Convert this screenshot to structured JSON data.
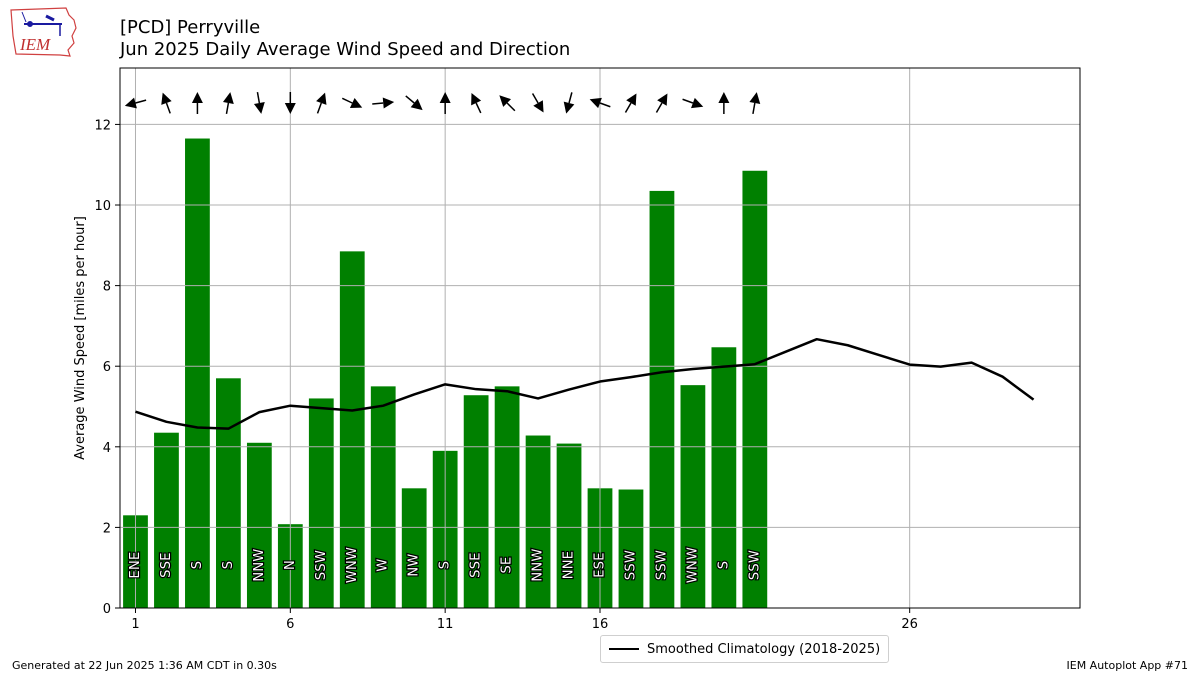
{
  "header": {
    "title_line1": "[PCD] Perryville",
    "title_line2": "Jun 2025 Daily Average Wind Speed and Direction",
    "logo_text": "IEM"
  },
  "footer": {
    "generated": "Generated at 22 Jun 2025 1:36 AM CDT in 0.30s",
    "app": "IEM Autoplot App #71"
  },
  "legend": {
    "climatology_label": "Smoothed Climatology (2018-2025)"
  },
  "colors": {
    "bar": "#008000",
    "climatology": "#000000",
    "grid": "#b0b0b0"
  },
  "chart_data": {
    "type": "bar",
    "ylabel": "Average Wind Speed [miles per hour]",
    "xlabel": "",
    "ylim": [
      0,
      13.4
    ],
    "xlim": [
      0.5,
      31.5
    ],
    "xticks": [
      1,
      6,
      11,
      16,
      26
    ],
    "yticks": [
      0,
      2,
      4,
      6,
      8,
      10,
      12
    ],
    "grid": true,
    "legend_position": "bottom-center",
    "series": [
      {
        "kind": "bar",
        "days": [
          1,
          2,
          3,
          4,
          5,
          6,
          7,
          8,
          9,
          10,
          11,
          12,
          13,
          14,
          15,
          16,
          17,
          18,
          19,
          20,
          21
        ],
        "values": [
          2.3,
          4.35,
          11.65,
          5.7,
          4.1,
          2.08,
          5.2,
          8.85,
          5.5,
          2.97,
          3.9,
          5.28,
          5.5,
          4.28,
          4.08,
          2.97,
          2.94,
          10.35,
          5.53,
          6.47,
          10.85
        ],
        "directions": [
          "ENE",
          "SSE",
          "S",
          "S",
          "NNW",
          "N",
          "SSW",
          "WNW",
          "W",
          "NW",
          "S",
          "SSE",
          "SE",
          "NNW",
          "NNE",
          "ESE",
          "SSW",
          "SSW",
          "WNW",
          "S",
          "SSW"
        ],
        "arrow_bearings_deg": [
          75,
          160,
          180,
          190,
          350,
          0,
          200,
          295,
          265,
          310,
          180,
          155,
          135,
          330,
          15,
          110,
          210,
          210,
          290,
          180,
          190
        ]
      },
      {
        "kind": "line",
        "name": "Smoothed Climatology (2018-2025)",
        "days": [
          1,
          2,
          3,
          4,
          5,
          6,
          7,
          8,
          9,
          10,
          11,
          12,
          13,
          14,
          15,
          16,
          17,
          18,
          19,
          20,
          21,
          22,
          23,
          24,
          25,
          26,
          27,
          28,
          29,
          30
        ],
        "values": [
          4.87,
          4.62,
          4.48,
          4.45,
          4.86,
          5.02,
          4.96,
          4.9,
          5.02,
          5.3,
          5.55,
          5.43,
          5.38,
          5.2,
          5.42,
          5.62,
          5.73,
          5.85,
          5.93,
          5.99,
          6.05,
          6.36,
          6.67,
          6.52,
          6.28,
          6.04,
          5.99,
          6.09,
          5.74,
          5.17
        ]
      }
    ]
  }
}
